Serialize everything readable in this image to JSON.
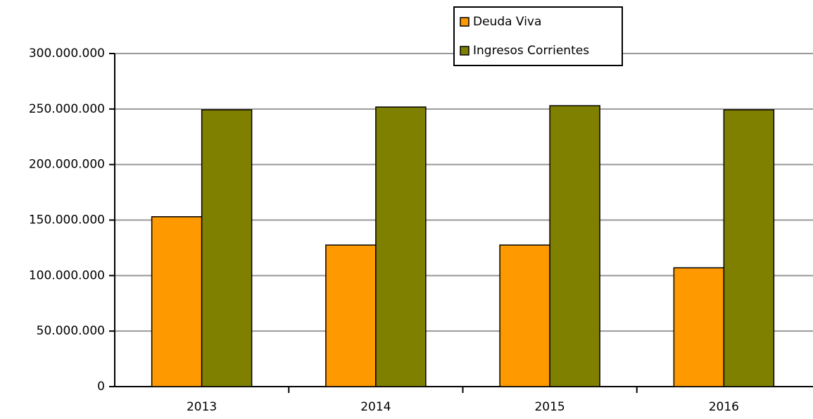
{
  "chart_data": {
    "type": "bar",
    "categories": [
      "2013",
      "2014",
      "2015",
      "2016"
    ],
    "series": [
      {
        "name": "Deuda Viva",
        "color": "#ff9900",
        "values": [
          153000000,
          127500000,
          127500000,
          107000000
        ]
      },
      {
        "name": "Ingresos Corrientes",
        "color": "#808000",
        "values": [
          249300000,
          251800000,
          253000000,
          249300000
        ]
      }
    ],
    "ylim": [
      0,
      300000000
    ],
    "yticks": [
      0,
      {
        "value": 50000000,
        "label": "50.000.000"
      },
      {
        "value": 100000000,
        "label": "100.000.000"
      },
      {
        "value": 150000000,
        "label": "150.000.000"
      },
      {
        "value": 200000000,
        "label": "200.000.000"
      },
      {
        "value": 250000000,
        "label": "250.000.000"
      },
      {
        "value": 300000000,
        "label": "300.000.000"
      }
    ],
    "grid": true,
    "legend": "top"
  }
}
